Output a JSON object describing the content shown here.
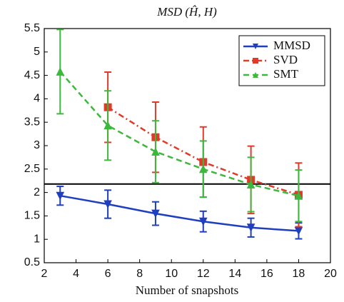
{
  "chart_data": {
    "type": "line",
    "title": "MSD (Ĥ, H)",
    "xlabel": "Number of snapshots",
    "xlim": [
      2,
      20
    ],
    "xticks": [
      2,
      4,
      6,
      8,
      10,
      12,
      14,
      16,
      18,
      20
    ],
    "ylim": [
      0.5,
      5.5
    ],
    "yticks": [
      0.5,
      1,
      1.5,
      2,
      2.5,
      3,
      3.5,
      4,
      4.5,
      5,
      5.5
    ],
    "hline": 2.18,
    "legend": "upper right",
    "series": [
      {
        "name": "MMSD",
        "color": "#1f3fbf",
        "marker": "v",
        "dash": "solid",
        "x": [
          3,
          6,
          9,
          12,
          15,
          18
        ],
        "values": [
          1.93,
          1.75,
          1.55,
          1.38,
          1.25,
          1.18
        ],
        "errors": [
          0.2,
          0.3,
          0.25,
          0.22,
          0.2,
          0.17
        ]
      },
      {
        "name": "SVD",
        "color": "#e03a2a",
        "marker": "s",
        "dash": "dashdot",
        "x": [
          6,
          9,
          12,
          15,
          18
        ],
        "values": [
          3.82,
          3.18,
          2.65,
          2.27,
          1.95
        ],
        "errors": [
          0.75,
          0.75,
          0.75,
          0.72,
          0.68
        ]
      },
      {
        "name": "SMT",
        "color": "#3cb83c",
        "marker": "^",
        "dash": "dashed",
        "x": [
          3,
          6,
          9,
          12,
          15,
          18
        ],
        "values": [
          4.58,
          3.43,
          2.87,
          2.5,
          2.17,
          1.93
        ],
        "errors": [
          0.9,
          0.74,
          0.66,
          0.6,
          0.58,
          0.55
        ]
      }
    ]
  }
}
